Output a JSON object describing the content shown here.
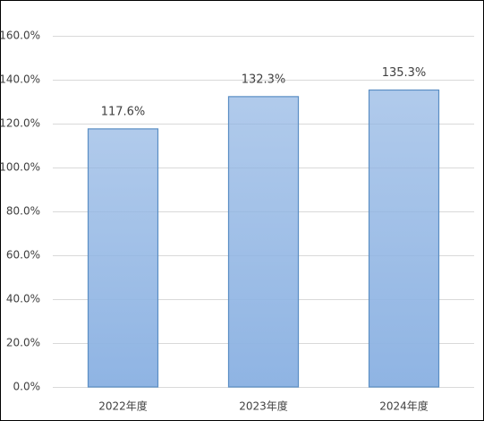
{
  "chart_data": {
    "type": "bar",
    "categories": [
      "2022年度",
      "2023年度",
      "2024年度"
    ],
    "values": [
      117.6,
      132.3,
      135.3
    ],
    "value_labels": [
      "117.6%",
      "132.3%",
      "135.3%"
    ],
    "color": "#8fb4e3",
    "ylim": [
      0,
      160
    ],
    "yticks": [
      {
        "value": 0,
        "label": "0.0%"
      },
      {
        "value": 20,
        "label": "20.0%"
      },
      {
        "value": 40,
        "label": "40.0%"
      },
      {
        "value": 60,
        "label": "60.0%"
      },
      {
        "value": 80,
        "label": "80.0%"
      },
      {
        "value": 100,
        "label": "100.0%"
      },
      {
        "value": 120,
        "label": "120.0%"
      },
      {
        "value": 140,
        "label": "140.0%"
      },
      {
        "value": 160,
        "label": "160.0%"
      }
    ],
    "grid": true
  }
}
